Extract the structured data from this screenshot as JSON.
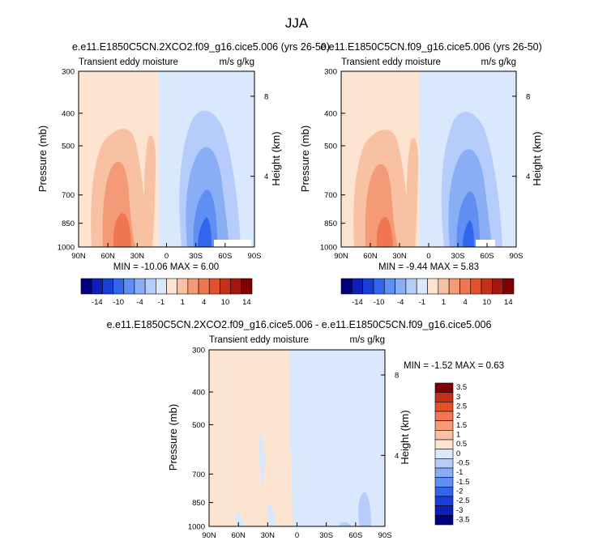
{
  "figure_title": "JJA",
  "colors": {
    "cb14": [
      "#00007f",
      "#0d1fb8",
      "#1a3fd9",
      "#3366ee",
      "#5f8ff2",
      "#8aaef6",
      "#b6ccfa",
      "#d9e8fd",
      "#fde4d0",
      "#f9c1a4",
      "#f49a77",
      "#ef7650",
      "#e4502c",
      "#c53018",
      "#a5160d",
      "#800000"
    ],
    "cb_diff": [
      "#00007f",
      "#0d1fb8",
      "#1a3fd9",
      "#3366ee",
      "#5f8ff2",
      "#8aaef6",
      "#b6ccfa",
      "#d9e8fd",
      "#fde4d0",
      "#f9c1a4",
      "#f49a77",
      "#ef7650",
      "#e4502c",
      "#c53018",
      "#800000"
    ]
  },
  "chart_data": [
    {
      "type": "contour",
      "id": "panel-left",
      "title": "e.e11.E1850C5CN.2XCO2.f09_g16.cice5.006 (yrs 26-50)",
      "left_label": "Transient eddy moisture",
      "right_label": "m/s g/kg",
      "ylabel": "Pressure (mb)",
      "right_axis_label": "Height (km)",
      "x_ticks": [
        "90N",
        "60N",
        "30N",
        "0",
        "30S",
        "60S",
        "90S"
      ],
      "y_ticks": [
        "300",
        "400",
        "500",
        "700",
        "850",
        "1000"
      ],
      "y_tick_values": [
        300,
        400,
        500,
        700,
        850,
        1000
      ],
      "height_ticks": [
        "8",
        "4"
      ],
      "height_tick_pressures": [
        356,
        616
      ],
      "ylim": [
        300,
        1000
      ],
      "xlim": [
        90,
        -90
      ],
      "stats": "MIN = -10.06  MAX =  6.00",
      "colorbar_labels": [
        "-14",
        "-10",
        "-4",
        "-1",
        "1",
        "4",
        "10",
        "14"
      ]
    },
    {
      "type": "contour",
      "id": "panel-right",
      "title": "e.e11.E1850C5CN.f09_g16.cice5.006 (yrs 26-50)",
      "left_label": "Transient eddy moisture",
      "right_label": "m/s g/kg",
      "ylabel": "Pressure (mb)",
      "right_axis_label": "Height (km)",
      "x_ticks": [
        "90N",
        "60N",
        "30N",
        "0",
        "30S",
        "60S",
        "90S"
      ],
      "y_ticks": [
        "300",
        "400",
        "500",
        "700",
        "850",
        "1000"
      ],
      "y_tick_values": [
        300,
        400,
        500,
        700,
        850,
        1000
      ],
      "height_ticks": [
        "8",
        "4"
      ],
      "height_tick_pressures": [
        356,
        616
      ],
      "ylim": [
        300,
        1000
      ],
      "xlim": [
        90,
        -90
      ],
      "stats": "MIN = -9.44  MAX =  5.83",
      "colorbar_labels": [
        "-14",
        "-10",
        "-4",
        "-1",
        "1",
        "4",
        "10",
        "14"
      ]
    },
    {
      "type": "contour",
      "id": "panel-diff",
      "title": "e.e11.E1850C5CN.2XCO2.f09_g16.cice5.006 - e.e11.E1850C5CN.f09_g16.cice5.006",
      "left_label": "Transient eddy moisture",
      "right_label": "m/s g/kg",
      "ylabel": "Pressure (mb)",
      "right_axis_label": "Height (km)",
      "x_ticks": [
        "90N",
        "60N",
        "30N",
        "0",
        "30S",
        "60S",
        "90S"
      ],
      "y_ticks": [
        "300",
        "400",
        "500",
        "700",
        "850",
        "1000"
      ],
      "y_tick_values": [
        300,
        400,
        500,
        700,
        850,
        1000
      ],
      "height_ticks": [
        "8",
        "4"
      ],
      "height_tick_pressures": [
        356,
        616
      ],
      "ylim": [
        300,
        1000
      ],
      "xlim": [
        90,
        -90
      ],
      "stats": "MIN = -1.52  MAX =  0.63",
      "colorbar_labels": [
        "3.5",
        "3",
        "2.5",
        "2",
        "1.5",
        "1",
        "0.5",
        "0",
        "-0.5",
        "-1",
        "-1.5",
        "-2",
        "-2.5",
        "-3",
        "-3.5"
      ]
    }
  ]
}
